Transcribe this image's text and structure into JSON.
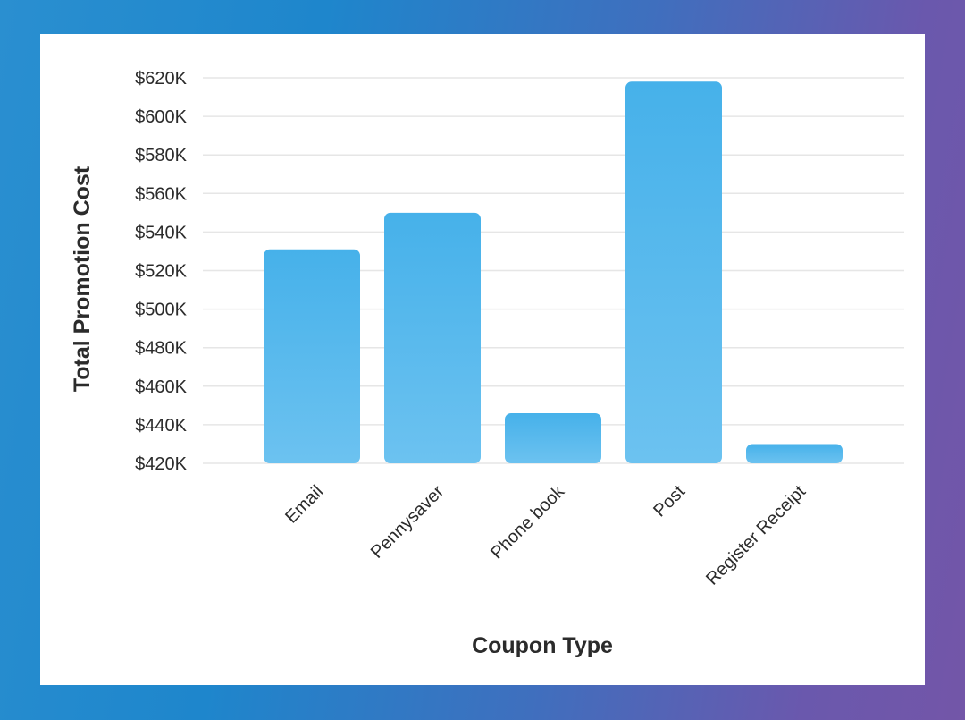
{
  "colors": {
    "bar_top": "#46b1ea",
    "bar_bottom": "#6cc2f0",
    "grid": "#e6e6e6"
  },
  "chart_data": {
    "type": "bar",
    "categories": [
      "Email",
      "Pennysaver",
      "Phone book",
      "Post",
      "Register Receipt"
    ],
    "values": [
      531,
      550,
      446,
      618,
      430
    ],
    "value_unit": "$K",
    "title": "",
    "xlabel": "Coupon Type",
    "ylabel": "Total Promotion Cost",
    "ylim": [
      420,
      620
    ],
    "yticks": [
      420,
      440,
      460,
      480,
      500,
      520,
      540,
      560,
      580,
      600,
      620
    ],
    "ytick_labels": [
      "$420K",
      "$440K",
      "$460K",
      "$480K",
      "$500K",
      "$520K",
      "$540K",
      "$560K",
      "$580K",
      "$600K",
      "$620K"
    ],
    "grid": true,
    "legend": "none"
  }
}
